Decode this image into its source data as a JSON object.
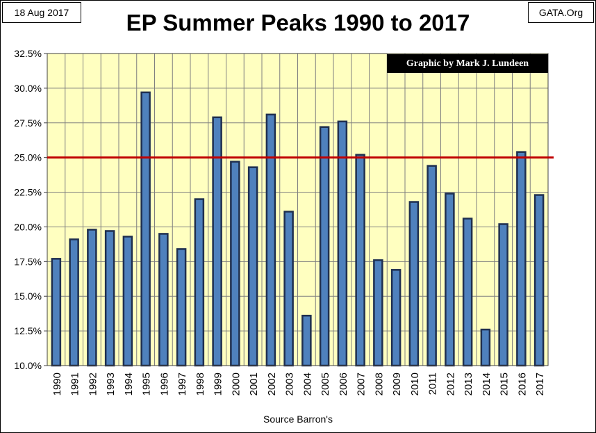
{
  "header": {
    "date": "18 Aug 2017",
    "site": "GATA.Org"
  },
  "chart_data": {
    "type": "bar",
    "title": "EP Summer Peaks 1990 to 2017",
    "credit": "Graphic by Mark J. Lundeen",
    "source": "Source Barron's",
    "categories": [
      "1990",
      "1991",
      "1992",
      "1993",
      "1994",
      "1995",
      "1996",
      "1997",
      "1998",
      "1999",
      "2000",
      "2001",
      "2002",
      "2003",
      "2004",
      "2005",
      "2006",
      "2007",
      "2008",
      "2009",
      "2010",
      "2011",
      "2012",
      "2013",
      "2014",
      "2015",
      "2016",
      "2017"
    ],
    "values": [
      17.7,
      19.1,
      19.8,
      19.7,
      19.3,
      29.7,
      19.5,
      18.4,
      22.0,
      27.9,
      24.7,
      24.3,
      28.1,
      21.1,
      13.6,
      27.2,
      27.6,
      25.2,
      17.6,
      16.9,
      21.8,
      24.4,
      22.4,
      20.6,
      12.6,
      20.2,
      25.4,
      22.3
    ],
    "ylim": [
      10,
      32.5
    ],
    "yticks": [
      10,
      12.5,
      15,
      17.5,
      20,
      22.5,
      25,
      27.5,
      30,
      32.5
    ],
    "ytick_labels": [
      "10.0%",
      "12.5%",
      "15.0%",
      "17.5%",
      "20.0%",
      "22.5%",
      "25.0%",
      "27.5%",
      "30.0%",
      "32.5%"
    ],
    "reference_line": 25,
    "grid": true,
    "colors": {
      "plot_background": "#ffffc0",
      "bar_fill": "#4f81bd",
      "bar_stroke": "#1f2f4f",
      "grid": "#7f7f7f",
      "reference_line": "#c00000"
    }
  }
}
